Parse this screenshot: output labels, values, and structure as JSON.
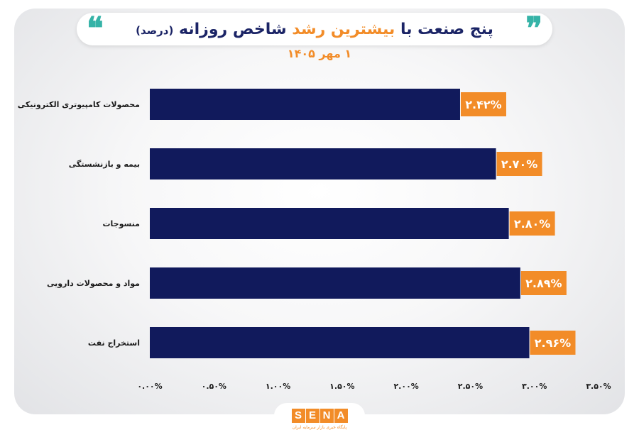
{
  "header": {
    "title_part1": "پنج صنعت با",
    "title_highlight": "بیشترین رشد",
    "title_part2": "شاخص روزانه",
    "title_unit": "(درصد)",
    "subtitle": "۱ مهر ۱۴۰۵"
  },
  "chart_data": {
    "type": "bar",
    "orientation": "horizontal",
    "categories": [
      "محصولات کامپیوتری الکترونیکی",
      "بیمه و بازنشستگی",
      "منسوجات",
      "مواد و محصولات دارویی",
      "استخراج نفت"
    ],
    "values": [
      2.42,
      2.7,
      2.8,
      2.89,
      2.96
    ],
    "value_labels": [
      "۲.۴۲%",
      "۲.۷۰%",
      "۲.۸۰%",
      "۲.۸۹%",
      "۲.۹۶%"
    ],
    "xlim": [
      0,
      3.5
    ],
    "x_ticks": [
      0,
      0.5,
      1.0,
      1.5,
      2.0,
      2.5,
      3.0,
      3.5
    ],
    "x_tick_labels": [
      "۰.۰۰%",
      "۰.۵۰%",
      "۱.۰۰%",
      "۱.۵۰%",
      "۲.۰۰%",
      "۲.۵۰%",
      "۳.۰۰%",
      "۳.۵۰%"
    ],
    "bar_color": "#111a5c",
    "label_color": "#f28c28",
    "grid": false
  },
  "logo": {
    "letters": [
      "S",
      "E",
      "N",
      "A"
    ],
    "tagline": "پایگاه خبری بازار سرمایه ایران"
  },
  "colors": {
    "accent": "#f28c28",
    "navy": "#1b2466",
    "quote": "#35b3a7"
  }
}
